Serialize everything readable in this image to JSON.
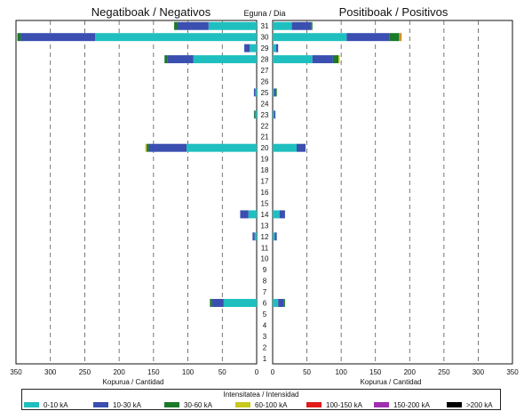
{
  "chart_data": {
    "type": "bar",
    "orientation": "horizontal",
    "stacked": true,
    "titles": {
      "left": "Negatiboak / Negativos",
      "center": "Eguna / Dia",
      "right": "Positiboak / Positivos"
    },
    "xlabel_left": "Kopurua / Cantidad",
    "xlabel_right": "Kopurua / Cantidad",
    "xlim": [
      0,
      350
    ],
    "xticks": [
      350,
      300,
      250,
      200,
      150,
      100,
      50,
      0
    ],
    "grid_x": true,
    "days": [
      1,
      2,
      3,
      4,
      5,
      6,
      7,
      8,
      9,
      10,
      11,
      12,
      13,
      14,
      15,
      16,
      17,
      18,
      19,
      20,
      21,
      22,
      23,
      24,
      25,
      26,
      27,
      28,
      29,
      30,
      31
    ],
    "legend": {
      "title": "Intensitatea / Intensidad",
      "placement": "bottom"
    },
    "series": [
      {
        "name": "0-10 kA",
        "color": "#1fbfbf",
        "negative": [
          0,
          0,
          0,
          0,
          0,
          48,
          0,
          0,
          0,
          0,
          0,
          3,
          0,
          12,
          0,
          0,
          0,
          0,
          0,
          102,
          0,
          0,
          2,
          0,
          2,
          0,
          0,
          92,
          10,
          235,
          70
        ],
        "positive": [
          0,
          0,
          0,
          0,
          0,
          8,
          0,
          0,
          0,
          0,
          0,
          3,
          0,
          10,
          0,
          0,
          0,
          0,
          0,
          35,
          0,
          0,
          2,
          0,
          2,
          0,
          0,
          58,
          5,
          108,
          28
        ]
      },
      {
        "name": "10-30 kA",
        "color": "#3a4fb0",
        "negative": [
          0,
          0,
          0,
          0,
          0,
          17,
          0,
          0,
          0,
          0,
          0,
          3,
          0,
          12,
          0,
          0,
          0,
          0,
          0,
          55,
          0,
          0,
          1,
          0,
          2,
          0,
          0,
          38,
          8,
          108,
          45
        ],
        "positive": [
          0,
          0,
          0,
          0,
          0,
          8,
          0,
          0,
          0,
          0,
          0,
          3,
          0,
          8,
          0,
          0,
          0,
          0,
          0,
          13,
          0,
          0,
          2,
          0,
          2,
          0,
          0,
          30,
          3,
          62,
          28
        ]
      },
      {
        "name": "30-60 kA",
        "color": "#1a7a2a",
        "negative": [
          0,
          0,
          0,
          0,
          0,
          3,
          0,
          0,
          0,
          0,
          0,
          0,
          0,
          0,
          0,
          0,
          0,
          0,
          0,
          3,
          0,
          0,
          1,
          0,
          0,
          0,
          0,
          4,
          0,
          5,
          5
        ],
        "positive": [
          0,
          0,
          0,
          0,
          0,
          2,
          0,
          0,
          0,
          0,
          0,
          0,
          0,
          0,
          0,
          0,
          0,
          0,
          0,
          0,
          0,
          0,
          0,
          0,
          2,
          0,
          0,
          8,
          0,
          15,
          2
        ]
      },
      {
        "name": "60-100 kA",
        "color": "#c8c81e",
        "negative": [
          0,
          0,
          0,
          0,
          0,
          0,
          0,
          0,
          0,
          0,
          0,
          0,
          0,
          0,
          0,
          0,
          0,
          0,
          0,
          2,
          0,
          0,
          0,
          0,
          0,
          0,
          0,
          0,
          0,
          0,
          0
        ],
        "positive": [
          0,
          0,
          0,
          0,
          0,
          0,
          0,
          0,
          0,
          0,
          0,
          0,
          0,
          0,
          0,
          0,
          0,
          0,
          0,
          0,
          0,
          0,
          0,
          0,
          0,
          0,
          0,
          2,
          0,
          2,
          0
        ]
      },
      {
        "name": "100-150 kA",
        "color": "#e21b1b",
        "negative": [
          0,
          0,
          0,
          0,
          0,
          0,
          0,
          0,
          0,
          0,
          0,
          0,
          0,
          0,
          0,
          0,
          0,
          0,
          0,
          0,
          0,
          0,
          0,
          0,
          0,
          0,
          0,
          0,
          0,
          0,
          0
        ],
        "positive": [
          0,
          0,
          0,
          0,
          0,
          0,
          0,
          0,
          0,
          0,
          0,
          0,
          0,
          0,
          0,
          0,
          0,
          0,
          0,
          0,
          0,
          0,
          0,
          0,
          0,
          0,
          0,
          0,
          0,
          1,
          0
        ]
      },
      {
        "name": "150-200 kA",
        "color": "#a030b0",
        "negative": [
          0,
          0,
          0,
          0,
          0,
          0,
          0,
          0,
          0,
          0,
          0,
          0,
          0,
          0,
          0,
          0,
          0,
          0,
          0,
          0,
          0,
          0,
          0,
          0,
          0,
          0,
          0,
          0,
          0,
          0,
          0
        ],
        "positive": [
          0,
          0,
          0,
          0,
          0,
          0,
          0,
          0,
          0,
          0,
          0,
          0,
          0,
          0,
          0,
          0,
          0,
          0,
          0,
          0,
          0,
          0,
          0,
          0,
          0,
          0,
          0,
          0,
          0,
          0,
          0
        ]
      },
      {
        "name": ">200 kA",
        "color": "#000000",
        "negative": [
          0,
          0,
          0,
          0,
          0,
          0,
          0,
          0,
          0,
          0,
          0,
          0,
          0,
          0,
          0,
          0,
          0,
          0,
          0,
          0,
          0,
          0,
          0,
          0,
          0,
          0,
          0,
          0,
          0,
          0,
          0
        ],
        "positive": [
          0,
          0,
          0,
          0,
          0,
          0,
          0,
          0,
          0,
          0,
          0,
          0,
          0,
          0,
          0,
          0,
          0,
          0,
          0,
          0,
          0,
          0,
          0,
          0,
          0,
          0,
          0,
          0,
          0,
          0,
          0
        ]
      }
    ]
  }
}
